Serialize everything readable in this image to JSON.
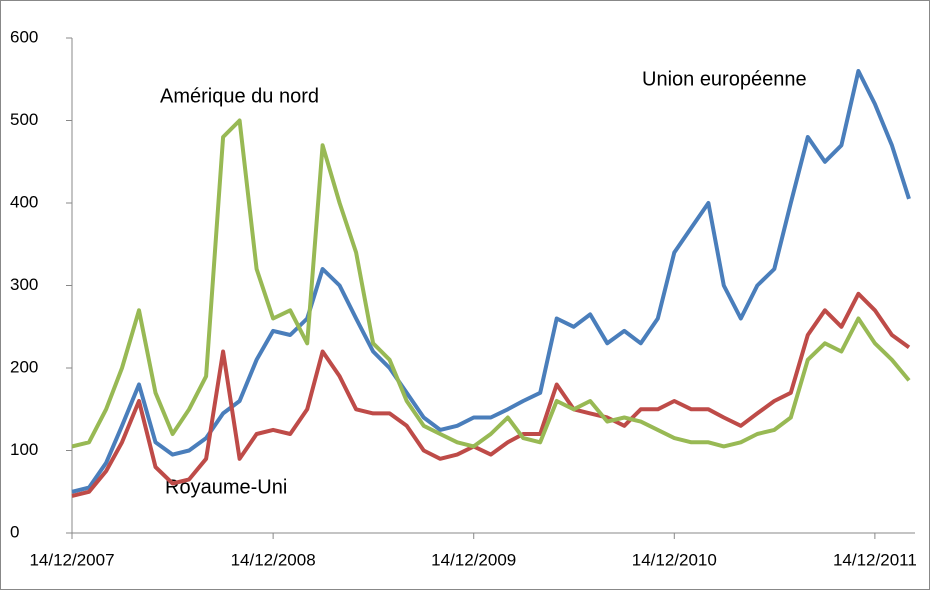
{
  "chart_data": {
    "type": "line",
    "x": [
      "2007-12-14",
      "2008-01-14",
      "2008-02-14",
      "2008-03-14",
      "2008-04-14",
      "2008-05-14",
      "2008-06-14",
      "2008-07-14",
      "2008-08-14",
      "2008-09-14",
      "2008-10-14",
      "2008-11-14",
      "2008-12-14",
      "2009-01-14",
      "2009-02-14",
      "2009-03-14",
      "2009-04-14",
      "2009-05-14",
      "2009-06-14",
      "2009-07-14",
      "2009-08-14",
      "2009-09-14",
      "2009-10-14",
      "2009-11-14",
      "2009-12-14",
      "2010-01-14",
      "2010-02-14",
      "2010-03-14",
      "2010-04-14",
      "2010-05-14",
      "2010-06-14",
      "2010-07-14",
      "2010-08-14",
      "2010-09-14",
      "2010-10-14",
      "2010-11-14",
      "2010-12-14",
      "2011-01-14",
      "2011-02-14",
      "2011-03-14",
      "2011-04-14",
      "2011-05-14",
      "2011-06-14",
      "2011-07-14",
      "2011-08-14",
      "2011-09-14",
      "2011-10-14",
      "2011-11-14",
      "2011-12-14",
      "2012-01-14",
      "2012-02-14"
    ],
    "series": [
      {
        "name": "Union européenne",
        "color": "#4a7ebb",
        "values": [
          50,
          55,
          85,
          130,
          180,
          110,
          95,
          100,
          115,
          145,
          160,
          210,
          245,
          240,
          260,
          320,
          300,
          260,
          220,
          200,
          170,
          140,
          125,
          130,
          140,
          140,
          150,
          160,
          170,
          260,
          250,
          265,
          230,
          245,
          230,
          260,
          340,
          370,
          400,
          300,
          260,
          300,
          320,
          400,
          480,
          450,
          470,
          560,
          520,
          470,
          405
        ]
      },
      {
        "name": "Royaume-Uni",
        "color": "#be4b48",
        "values": [
          45,
          50,
          75,
          110,
          160,
          80,
          60,
          65,
          90,
          220,
          90,
          120,
          125,
          120,
          150,
          220,
          190,
          150,
          145,
          145,
          130,
          100,
          90,
          95,
          105,
          95,
          110,
          120,
          120,
          180,
          150,
          145,
          140,
          130,
          150,
          150,
          160,
          150,
          150,
          140,
          130,
          145,
          160,
          170,
          240,
          270,
          250,
          290,
          270,
          240,
          225
        ]
      },
      {
        "name": "Amérique du nord",
        "color": "#98b954",
        "values": [
          105,
          110,
          150,
          200,
          270,
          170,
          120,
          150,
          190,
          480,
          500,
          320,
          260,
          270,
          230,
          470,
          400,
          340,
          230,
          210,
          160,
          130,
          120,
          110,
          105,
          120,
          140,
          115,
          110,
          160,
          150,
          160,
          135,
          140,
          135,
          125,
          115,
          110,
          110,
          105,
          110,
          120,
          125,
          140,
          210,
          230,
          220,
          260,
          230,
          210,
          185
        ]
      }
    ],
    "xlim": [
      "2007-12-14",
      "2012-02-25"
    ],
    "xticks": [
      {
        "value": "2007-12-14",
        "label": "14/12/2007"
      },
      {
        "value": "2008-12-14",
        "label": "14/12/2008"
      },
      {
        "value": "2009-12-14",
        "label": "14/12/2009"
      },
      {
        "value": "2010-12-14",
        "label": "14/12/2010"
      },
      {
        "value": "2011-12-14",
        "label": "14/12/2011"
      }
    ],
    "ylim": [
      0,
      600
    ],
    "yticks": [
      0,
      100,
      200,
      300,
      400,
      500,
      600
    ],
    "grid": false
  }
}
